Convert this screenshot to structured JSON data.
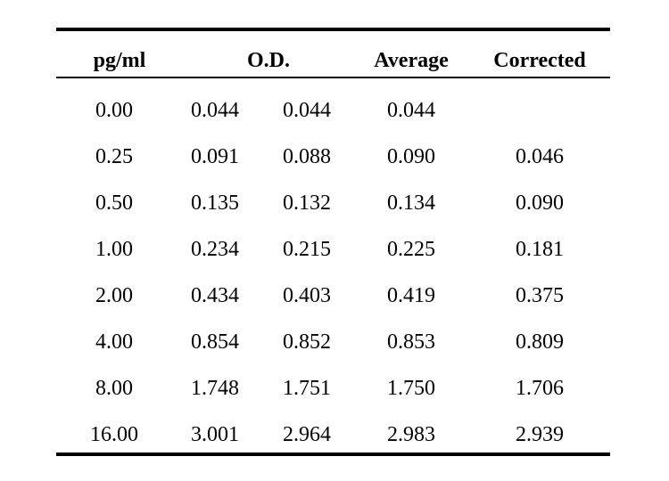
{
  "table": {
    "headers": {
      "pg": "pg/ml",
      "od": "O.D.",
      "average": "Average",
      "corrected": "Corrected"
    },
    "rows": [
      {
        "pg": "0.00",
        "od1": "0.044",
        "od2": "0.044",
        "average": "0.044",
        "corrected": ""
      },
      {
        "pg": "0.25",
        "od1": "0.091",
        "od2": "0.088",
        "average": "0.090",
        "corrected": "0.046"
      },
      {
        "pg": "0.50",
        "od1": "0.135",
        "od2": "0.132",
        "average": "0.134",
        "corrected": "0.090"
      },
      {
        "pg": "1.00",
        "od1": "0.234",
        "od2": "0.215",
        "average": "0.225",
        "corrected": "0.181"
      },
      {
        "pg": "2.00",
        "od1": "0.434",
        "od2": "0.403",
        "average": "0.419",
        "corrected": "0.375"
      },
      {
        "pg": "4.00",
        "od1": "0.854",
        "od2": "0.852",
        "average": "0.853",
        "corrected": "0.809"
      },
      {
        "pg": "8.00",
        "od1": "1.748",
        "od2": "1.751",
        "average": "1.750",
        "corrected": "1.706"
      },
      {
        "pg": "16.00",
        "od1": "3.001",
        "od2": "2.964",
        "average": "2.983",
        "corrected": "2.939"
      }
    ]
  }
}
